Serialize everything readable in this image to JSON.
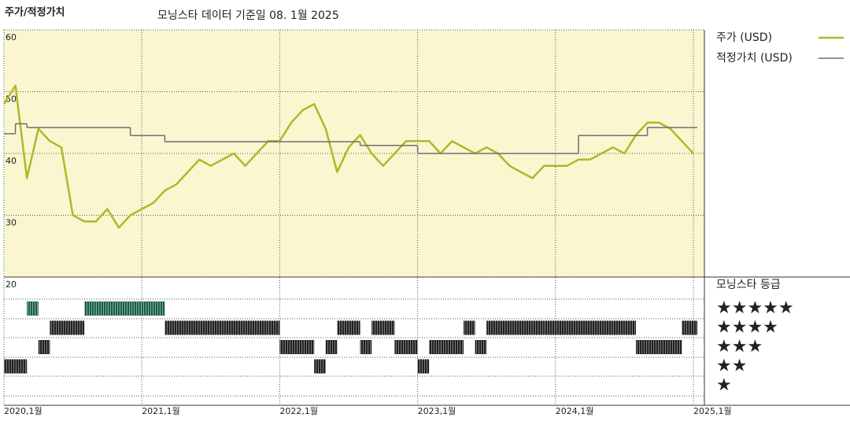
{
  "chart_data": [
    {
      "type": "line",
      "title": "주가/적정가치",
      "subtitle": "모닝스타 데이터 기준일 08. 1월 2025",
      "x": [
        "2020-01",
        "2020-02",
        "2020-03",
        "2020-04",
        "2020-05",
        "2020-06",
        "2020-07",
        "2020-08",
        "2020-09",
        "2020-10",
        "2020-11",
        "2020-12",
        "2021-01",
        "2021-02",
        "2021-03",
        "2021-04",
        "2021-05",
        "2021-06",
        "2021-07",
        "2021-08",
        "2021-09",
        "2021-10",
        "2021-11",
        "2021-12",
        "2022-01",
        "2022-02",
        "2022-03",
        "2022-04",
        "2022-05",
        "2022-06",
        "2022-07",
        "2022-08",
        "2022-09",
        "2022-10",
        "2022-11",
        "2022-12",
        "2023-01",
        "2023-02",
        "2023-03",
        "2023-04",
        "2023-05",
        "2023-06",
        "2023-07",
        "2023-08",
        "2023-09",
        "2023-10",
        "2023-11",
        "2023-12",
        "2024-01",
        "2024-02",
        "2024-03",
        "2024-04",
        "2024-05",
        "2024-06",
        "2024-07",
        "2024-08",
        "2024-09",
        "2024-10",
        "2024-11",
        "2024-12",
        "2025-01"
      ],
      "series": [
        {
          "name": "주가 (USD)",
          "color": "#b3b62a",
          "values": [
            48,
            51,
            36,
            44,
            42,
            41,
            30,
            29,
            29,
            31,
            28,
            30,
            31,
            32,
            34,
            35,
            37,
            39,
            38,
            39,
            40,
            38,
            40,
            42,
            42,
            45,
            47,
            48,
            44,
            37,
            41,
            43,
            40,
            38,
            40,
            42,
            42,
            42,
            40,
            42,
            41,
            40,
            41,
            40,
            38,
            37,
            36,
            38,
            38,
            38,
            39,
            39,
            40,
            41,
            40,
            43,
            45,
            45,
            44,
            42,
            40
          ]
        },
        {
          "name": "적정가치 (USD)",
          "color": "#6e6e6e",
          "step": true,
          "values": [
            43.2,
            44.8,
            44.2,
            44.2,
            44.2,
            44.2,
            44.2,
            44.2,
            44.2,
            44.2,
            44.2,
            42.9,
            42.9,
            42.9,
            41.9,
            41.9,
            41.9,
            41.9,
            41.9,
            41.9,
            41.9,
            41.9,
            41.9,
            41.9,
            41.9,
            41.9,
            41.9,
            41.9,
            41.9,
            41.9,
            41.9,
            41.3,
            41.3,
            41.3,
            41.3,
            41.3,
            40,
            40,
            40,
            40,
            40,
            40,
            40,
            40,
            40,
            40,
            40,
            40,
            40,
            40,
            42.9,
            42.9,
            42.9,
            42.9,
            42.9,
            42.9,
            44.2,
            44.2,
            44.2,
            44.2,
            44.2
          ]
        }
      ],
      "xlim": [
        "2020-01",
        "2025-01"
      ],
      "xticks": [
        {
          "value": "2020-01",
          "label": "2020,1월"
        },
        {
          "value": "2021-01",
          "label": "2021,1월"
        },
        {
          "value": "2022-01",
          "label": "2022,1월"
        },
        {
          "value": "2023-01",
          "label": "2023,1월"
        },
        {
          "value": "2024-01",
          "label": "2024,1월"
        },
        {
          "value": "2025-01",
          "label": "2025,1월"
        }
      ],
      "ylim": [
        20,
        60
      ],
      "yticks": [
        20,
        30,
        40,
        50,
        60
      ],
      "grid": true
    },
    {
      "type": "rating",
      "title": "모닝스타 등급",
      "levels": [
        "★★★★★",
        "★★★★",
        "★★★",
        "★★",
        "★"
      ],
      "colors": [
        "#333333",
        "#333333",
        "#333333",
        "#333333",
        "#2f8a6f"
      ],
      "values": [
        2,
        2,
        5,
        3,
        4,
        4,
        4,
        5,
        5,
        5,
        5,
        5,
        5,
        5,
        4,
        4,
        4,
        4,
        4,
        4,
        4,
        4,
        4,
        4,
        3,
        3,
        3,
        2,
        3,
        4,
        4,
        3,
        4,
        4,
        3,
        3,
        2,
        3,
        3,
        3,
        4,
        3,
        4,
        4,
        4,
        4,
        4,
        4,
        4,
        4,
        4,
        4,
        4,
        4,
        4,
        3,
        3,
        3,
        3,
        4,
        4
      ]
    }
  ]
}
